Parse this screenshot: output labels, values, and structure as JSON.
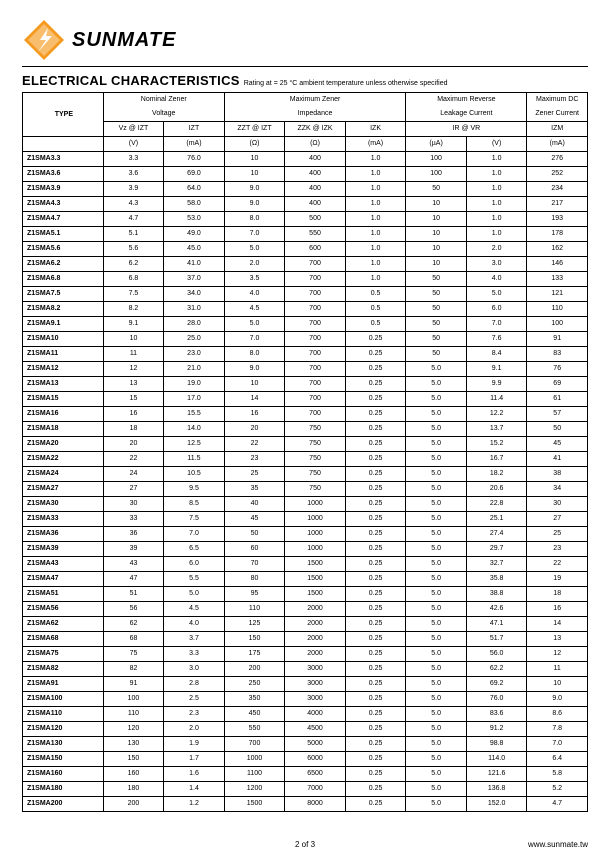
{
  "brand": "SUNMATE",
  "title": "ELECTRICAL CHARACTERISTICS",
  "subtitle": "Rating at  = 25 °C ambient temperature unless otherwise specified",
  "footer_left": "2 of 3",
  "footer_right": "www.sunmate.tw",
  "logo": {
    "orange": "#f59a1f",
    "dark": "#2f2f2f"
  },
  "group_headers": [
    {
      "label": "Nominal Zener\nVoltage",
      "span": 2
    },
    {
      "label": "Maximum Zener\nImpedance",
      "span": 3
    },
    {
      "label": "Maximum Reverse\nLeakage Current",
      "span": 2
    },
    {
      "label": "Maximum DC\nZener Current",
      "span": 1
    }
  ],
  "sub_headers": [
    "Vz @ IZT",
    "IZT",
    "ZZT @ IZT",
    "ZZK @ IZK",
    "IZK",
    "IR   @   VR",
    "",
    "IZM"
  ],
  "units": [
    "(V)",
    "(mA)",
    "(Ω)",
    "(Ω)",
    "(mA)",
    "(µA)",
    "(V)",
    "(mA)"
  ],
  "type_label": "TYPE",
  "col_widths": [
    "72",
    "54",
    "54",
    "54",
    "54",
    "54",
    "54",
    "54",
    "54"
  ],
  "rows": [
    [
      "Z1SMA3.3",
      "3.3",
      "76.0",
      "10",
      "400",
      "1.0",
      "100",
      "1.0",
      "276"
    ],
    [
      "Z1SMA3.6",
      "3.6",
      "69.0",
      "10",
      "400",
      "1.0",
      "100",
      "1.0",
      "252"
    ],
    [
      "Z1SMA3.9",
      "3.9",
      "64.0",
      "9.0",
      "400",
      "1.0",
      "50",
      "1.0",
      "234"
    ],
    [
      "Z1SMA4.3",
      "4.3",
      "58.0",
      "9.0",
      "400",
      "1.0",
      "10",
      "1.0",
      "217"
    ],
    [
      "Z1SMA4.7",
      "4.7",
      "53.0",
      "8.0",
      "500",
      "1.0",
      "10",
      "1.0",
      "193"
    ],
    [
      "Z1SMA5.1",
      "5.1",
      "49.0",
      "7.0",
      "550",
      "1.0",
      "10",
      "1.0",
      "178"
    ],
    [
      "Z1SMA5.6",
      "5.6",
      "45.0",
      "5.0",
      "600",
      "1.0",
      "10",
      "2.0",
      "162"
    ],
    [
      "Z1SMA6.2",
      "6.2",
      "41.0",
      "2.0",
      "700",
      "1.0",
      "10",
      "3.0",
      "146"
    ],
    [
      "Z1SMA6.8",
      "6.8",
      "37.0",
      "3.5",
      "700",
      "1.0",
      "50",
      "4.0",
      "133"
    ],
    [
      "Z1SMA7.5",
      "7.5",
      "34.0",
      "4.0",
      "700",
      "0.5",
      "50",
      "5.0",
      "121"
    ],
    [
      "Z1SMA8.2",
      "8.2",
      "31.0",
      "4.5",
      "700",
      "0.5",
      "50",
      "6.0",
      "110"
    ],
    [
      "Z1SMA9.1",
      "9.1",
      "28.0",
      "5.0",
      "700",
      "0.5",
      "50",
      "7.0",
      "100"
    ],
    [
      "Z1SMA10",
      "10",
      "25.0",
      "7.0",
      "700",
      "0.25",
      "50",
      "7.6",
      "91"
    ],
    [
      "Z1SMA11",
      "11",
      "23.0",
      "8.0",
      "700",
      "0.25",
      "50",
      "8.4",
      "83"
    ],
    [
      "Z1SMA12",
      "12",
      "21.0",
      "9.0",
      "700",
      "0.25",
      "5.0",
      "9.1",
      "76"
    ],
    [
      "Z1SMA13",
      "13",
      "19.0",
      "10",
      "700",
      "0.25",
      "5.0",
      "9.9",
      "69"
    ],
    [
      "Z1SMA15",
      "15",
      "17.0",
      "14",
      "700",
      "0.25",
      "5.0",
      "11.4",
      "61"
    ],
    [
      "Z1SMA16",
      "16",
      "15.5",
      "16",
      "700",
      "0.25",
      "5.0",
      "12.2",
      "57"
    ],
    [
      "Z1SMA18",
      "18",
      "14.0",
      "20",
      "750",
      "0.25",
      "5.0",
      "13.7",
      "50"
    ],
    [
      "Z1SMA20",
      "20",
      "12.5",
      "22",
      "750",
      "0.25",
      "5.0",
      "15.2",
      "45"
    ],
    [
      "Z1SMA22",
      "22",
      "11.5",
      "23",
      "750",
      "0.25",
      "5.0",
      "16.7",
      "41"
    ],
    [
      "Z1SMA24",
      "24",
      "10.5",
      "25",
      "750",
      "0.25",
      "5.0",
      "18.2",
      "38"
    ],
    [
      "Z1SMA27",
      "27",
      "9.5",
      "35",
      "750",
      "0.25",
      "5.0",
      "20.6",
      "34"
    ],
    [
      "Z1SMA30",
      "30",
      "8.5",
      "40",
      "1000",
      "0.25",
      "5.0",
      "22.8",
      "30"
    ],
    [
      "Z1SMA33",
      "33",
      "7.5",
      "45",
      "1000",
      "0.25",
      "5.0",
      "25.1",
      "27"
    ],
    [
      "Z1SMA36",
      "36",
      "7.0",
      "50",
      "1000",
      "0.25",
      "5.0",
      "27.4",
      "25"
    ],
    [
      "Z1SMA39",
      "39",
      "6.5",
      "60",
      "1000",
      "0.25",
      "5.0",
      "29.7",
      "23"
    ],
    [
      "Z1SMA43",
      "43",
      "6.0",
      "70",
      "1500",
      "0.25",
      "5.0",
      "32.7",
      "22"
    ],
    [
      "Z1SMA47",
      "47",
      "5.5",
      "80",
      "1500",
      "0.25",
      "5.0",
      "35.8",
      "19"
    ],
    [
      "Z1SMA51",
      "51",
      "5.0",
      "95",
      "1500",
      "0.25",
      "5.0",
      "38.8",
      "18"
    ],
    [
      "Z1SMA56",
      "56",
      "4.5",
      "110",
      "2000",
      "0.25",
      "5.0",
      "42.6",
      "16"
    ],
    [
      "Z1SMA62",
      "62",
      "4.0",
      "125",
      "2000",
      "0.25",
      "5.0",
      "47.1",
      "14"
    ],
    [
      "Z1SMA68",
      "68",
      "3.7",
      "150",
      "2000",
      "0.25",
      "5.0",
      "51.7",
      "13"
    ],
    [
      "Z1SMA75",
      "75",
      "3.3",
      "175",
      "2000",
      "0.25",
      "5.0",
      "56.0",
      "12"
    ],
    [
      "Z1SMA82",
      "82",
      "3.0",
      "200",
      "3000",
      "0.25",
      "5.0",
      "62.2",
      "11"
    ],
    [
      "Z1SMA91",
      "91",
      "2.8",
      "250",
      "3000",
      "0.25",
      "5.0",
      "69.2",
      "10"
    ],
    [
      "Z1SMA100",
      "100",
      "2.5",
      "350",
      "3000",
      "0.25",
      "5.0",
      "76.0",
      "9.0"
    ],
    [
      "Z1SMA110",
      "110",
      "2.3",
      "450",
      "4000",
      "0.25",
      "5.0",
      "83.6",
      "8.6"
    ],
    [
      "Z1SMA120",
      "120",
      "2.0",
      "550",
      "4500",
      "0.25",
      "5.0",
      "91.2",
      "7.8"
    ],
    [
      "Z1SMA130",
      "130",
      "1.9",
      "700",
      "5000",
      "0.25",
      "5.0",
      "98.8",
      "7.0"
    ],
    [
      "Z1SMA150",
      "150",
      "1.7",
      "1000",
      "6000",
      "0.25",
      "5.0",
      "114.0",
      "6.4"
    ],
    [
      "Z1SMA160",
      "160",
      "1.6",
      "1100",
      "6500",
      "0.25",
      "5.0",
      "121.6",
      "5.8"
    ],
    [
      "Z1SMA180",
      "180",
      "1.4",
      "1200",
      "7000",
      "0.25",
      "5.0",
      "136.8",
      "5.2"
    ],
    [
      "Z1SMA200",
      "200",
      "1.2",
      "1500",
      "8000",
      "0.25",
      "5.0",
      "152.0",
      "4.7"
    ]
  ]
}
